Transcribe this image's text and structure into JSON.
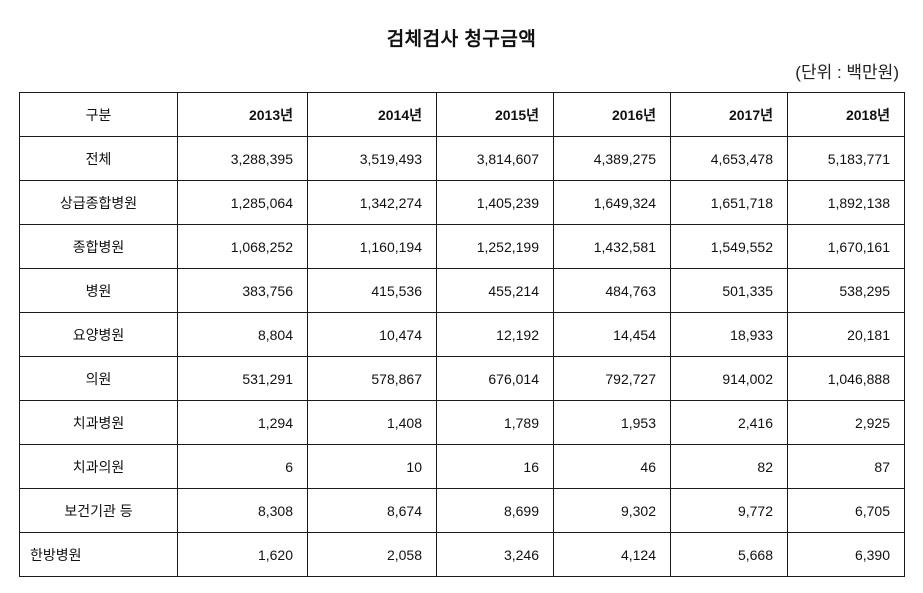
{
  "document": {
    "title": "검체검사 청구금액",
    "unit_note": "(단위 : 백만원)"
  },
  "table": {
    "headers": [
      "구분",
      "2013년",
      "2014년",
      "2015년",
      "2016년",
      "2017년",
      "2018년"
    ],
    "rows": [
      {
        "label": "전체",
        "values": [
          "3,288,395",
          "3,519,493",
          "3,814,607",
          "4,389,275",
          "4,653,478",
          "5,183,771"
        ]
      },
      {
        "label": "상급종합병원",
        "values": [
          "1,285,064",
          "1,342,274",
          "1,405,239",
          "1,649,324",
          "1,651,718",
          "1,892,138"
        ]
      },
      {
        "label": "종합병원",
        "values": [
          "1,068,252",
          "1,160,194",
          "1,252,199",
          "1,432,581",
          "1,549,552",
          "1,670,161"
        ]
      },
      {
        "label": "병원",
        "values": [
          "383,756",
          "415,536",
          "455,214",
          "484,763",
          "501,335",
          "538,295"
        ]
      },
      {
        "label": "요양병원",
        "values": [
          "8,804",
          "10,474",
          "12,192",
          "14,454",
          "18,933",
          "20,181"
        ]
      },
      {
        "label": "의원",
        "values": [
          "531,291",
          "578,867",
          "676,014",
          "792,727",
          "914,002",
          "1,046,888"
        ]
      },
      {
        "label": "치과병원",
        "values": [
          "1,294",
          "1,408",
          "1,789",
          "1,953",
          "2,416",
          "2,925"
        ]
      },
      {
        "label": "치과의원",
        "values": [
          "6",
          "10",
          "16",
          "46",
          "82",
          "87"
        ]
      },
      {
        "label": "보건기관 등",
        "values": [
          "8,308",
          "8,674",
          "8,699",
          "9,302",
          "9,772",
          "6,705"
        ]
      },
      {
        "label": "한방병원",
        "values": [
          "1,620",
          "2,058",
          "3,246",
          "4,124",
          "5,668",
          "6,390"
        ]
      }
    ]
  }
}
